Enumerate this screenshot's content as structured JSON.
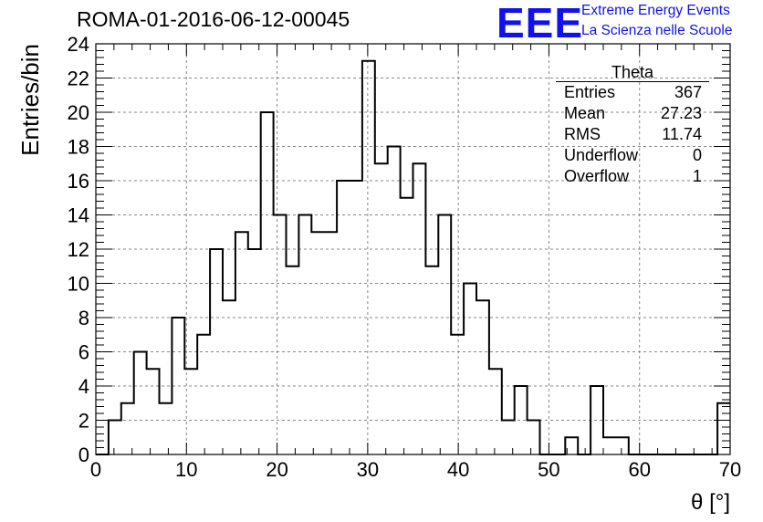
{
  "header": {
    "run_title": "ROMA-01-2016-06-12-00045",
    "logo": "EEE",
    "logo_line1": "Extreme Energy Events",
    "logo_line2": "La Scienza nelle Scuole"
  },
  "stats_box": {
    "title": "Theta",
    "rows": [
      {
        "label": "Entries",
        "value": "367"
      },
      {
        "label": "Mean",
        "value": "27.23"
      },
      {
        "label": "RMS",
        "value": "11.74"
      },
      {
        "label": "Underflow",
        "value": "0"
      },
      {
        "label": "Overflow",
        "value": "1"
      }
    ]
  },
  "chart_data": {
    "type": "histogram",
    "xlabel": "θ [°]",
    "ylabel": "Entries/bin",
    "xlim": [
      0,
      70
    ],
    "ylim": [
      0,
      24
    ],
    "bin_width": 1.4,
    "bin_edges_start": 0,
    "counts": [
      0,
      2,
      3,
      6,
      5,
      3,
      8,
      5,
      7,
      12,
      9,
      13,
      12,
      20,
      14,
      11,
      14,
      13,
      13,
      16,
      16,
      23,
      17,
      18,
      15,
      17,
      11,
      14,
      7,
      10,
      9,
      5,
      2,
      4,
      2,
      0,
      0,
      1,
      0,
      4,
      1,
      1,
      0,
      0,
      0,
      0,
      0,
      0,
      0,
      3
    ],
    "x_ticks": [
      0,
      10,
      20,
      30,
      40,
      50,
      60,
      70
    ],
    "y_ticks": [
      0,
      2,
      4,
      6,
      8,
      10,
      12,
      14,
      16,
      18,
      20,
      22,
      24
    ],
    "grid": true,
    "line_color": "#000000"
  }
}
